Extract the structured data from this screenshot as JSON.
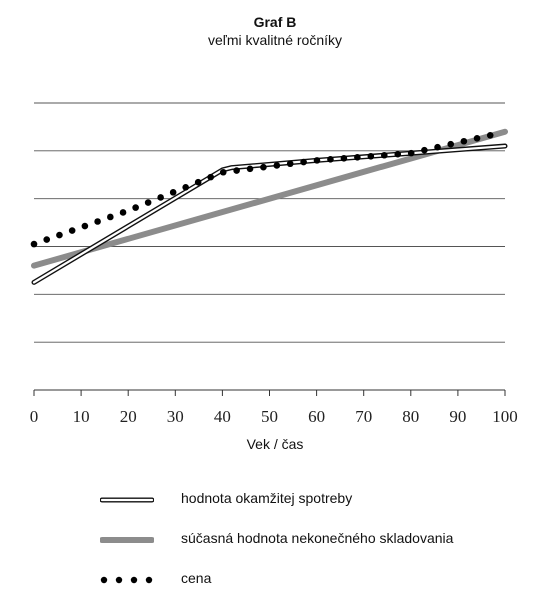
{
  "chart_data": {
    "type": "line",
    "title": "Graf B",
    "subtitle": "veľmi kvalitné ročníky",
    "xlabel": "Vek / čas",
    "ylabel": "",
    "x_ticks": [
      "0",
      "10",
      "20",
      "30",
      "40",
      "50",
      "60",
      "70",
      "80",
      "90",
      "100"
    ],
    "xlim": [
      0,
      100
    ],
    "ylim": [
      0,
      6
    ],
    "y_ticks_labeled": false,
    "grid": "horizontal",
    "legend_position": "bottom",
    "series": [
      {
        "name": "hodnota okamžitej spotreby",
        "style": "double-outline",
        "color": "#111111",
        "x": [
          0,
          40,
          42,
          60,
          80,
          100
        ],
        "y": [
          2.25,
          4.6,
          4.65,
          4.8,
          4.95,
          5.1
        ]
      },
      {
        "name": "súčasná hodnota nekonečného skladovania",
        "style": "thick",
        "color": "#8c8c8c",
        "x": [
          0,
          100
        ],
        "y": [
          2.6,
          5.4
        ]
      },
      {
        "name": "cena",
        "style": "dotted",
        "color": "#000000",
        "x": [
          0,
          20,
          40,
          60,
          80,
          98
        ],
        "y": [
          3.05,
          3.75,
          4.55,
          4.8,
          4.95,
          5.35
        ]
      }
    ]
  }
}
